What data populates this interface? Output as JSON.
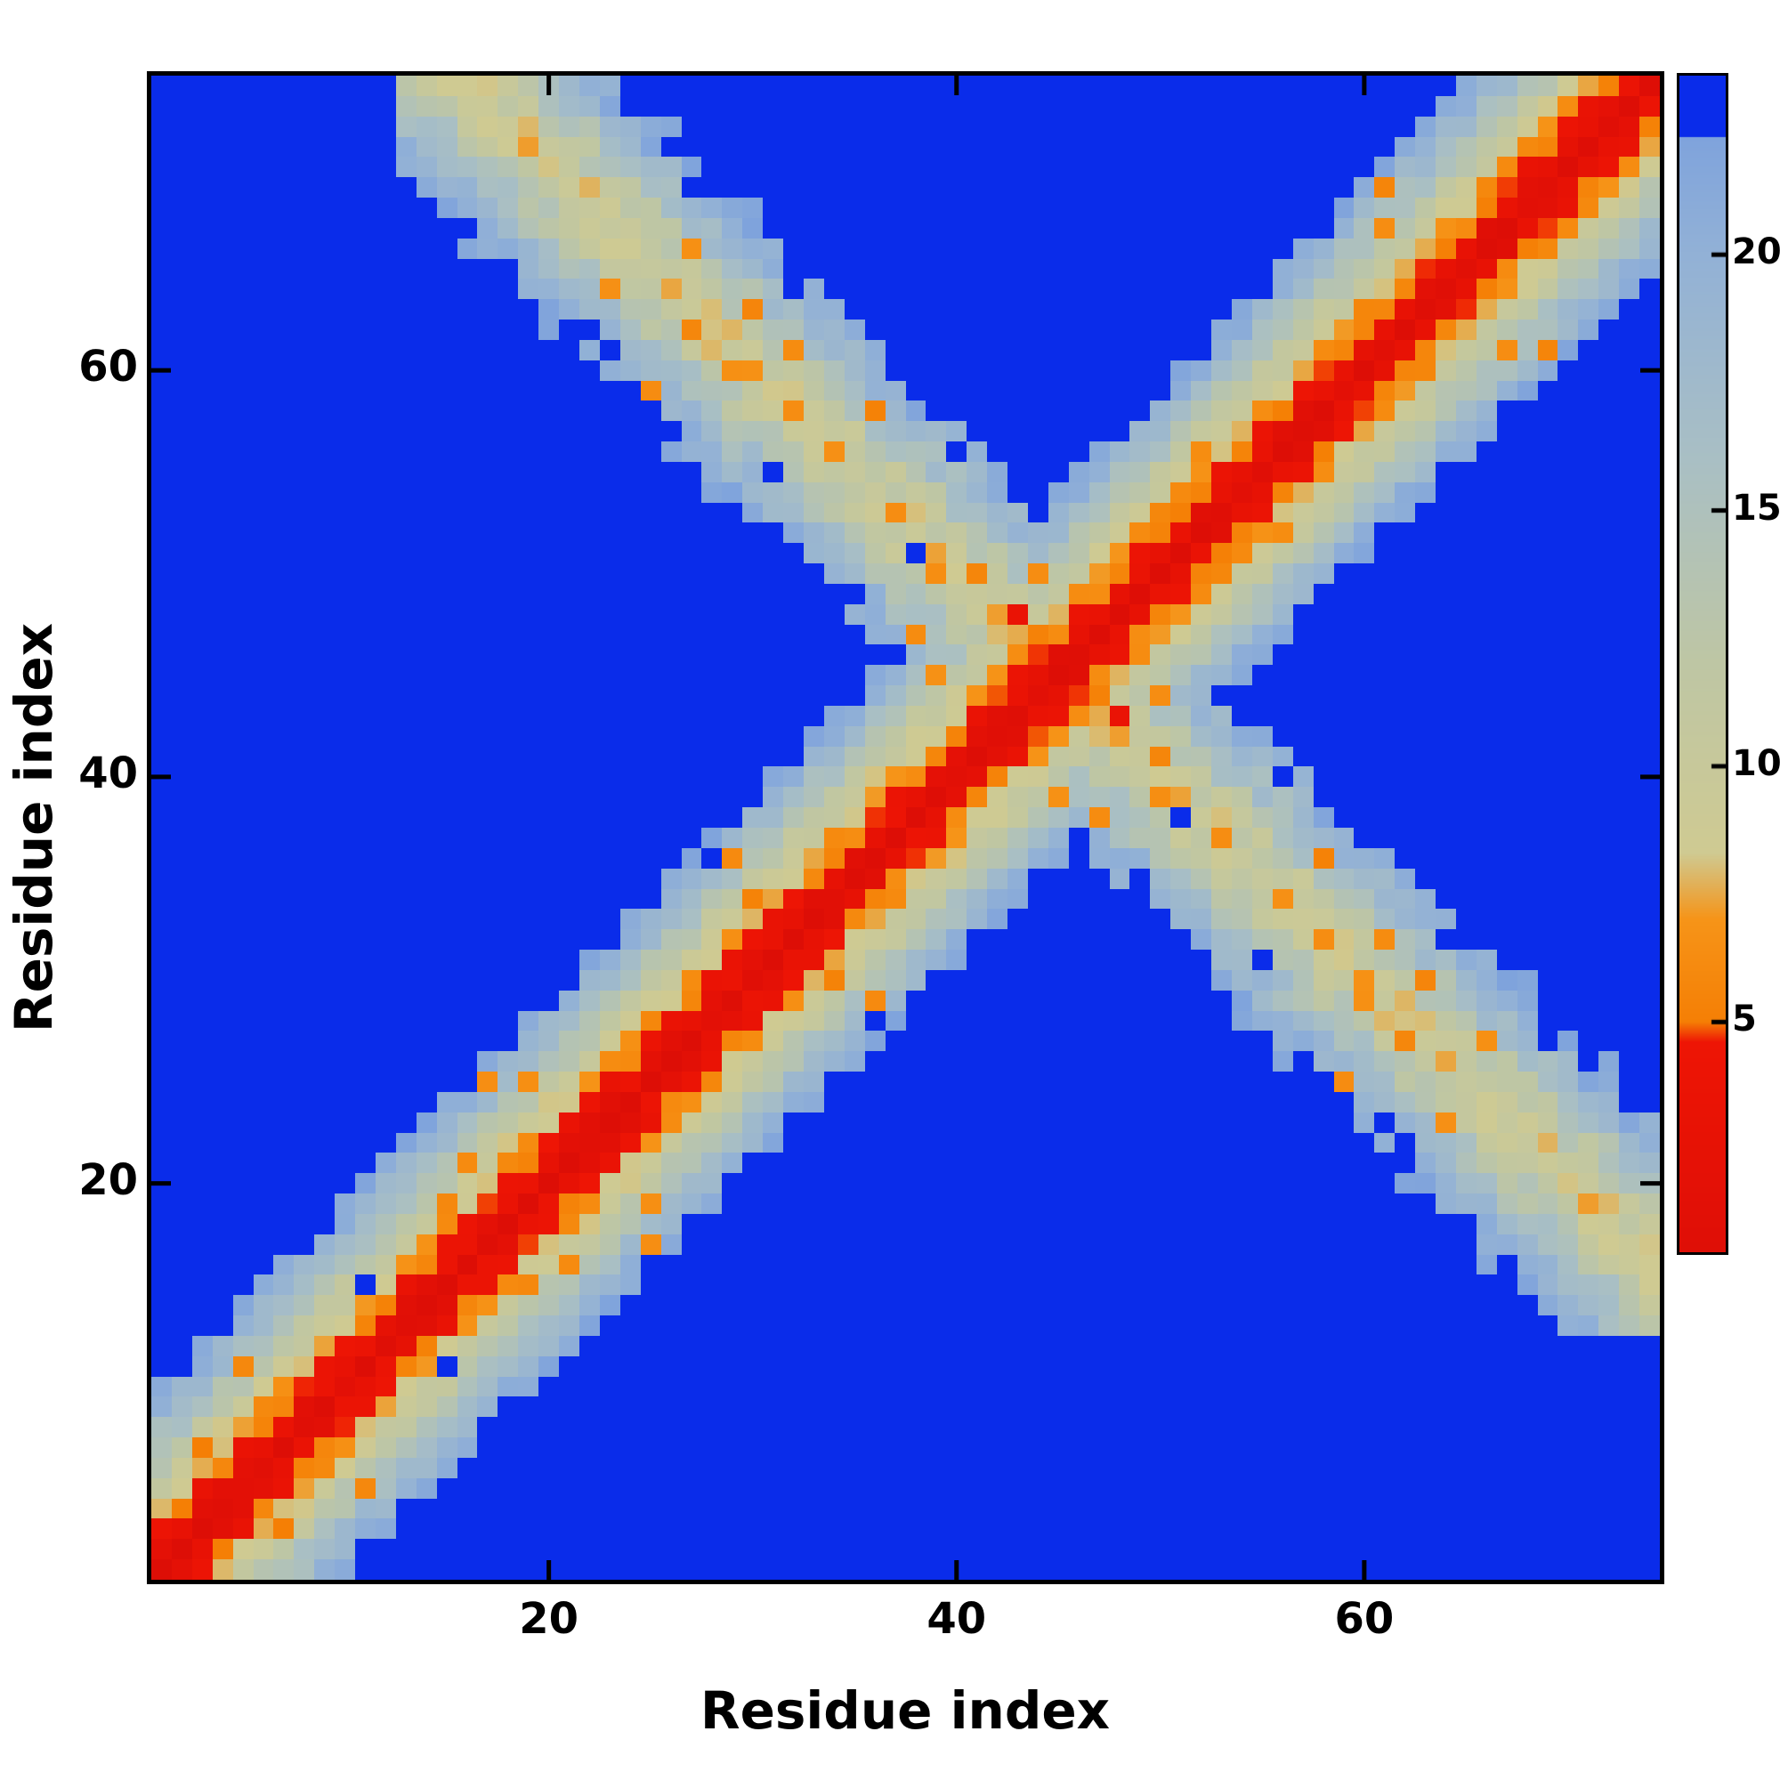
{
  "figure": {
    "background": "#ffffff",
    "axis_color": "#000000"
  },
  "chart_data": {
    "type": "heatmap",
    "title": "",
    "xlabel": "Residue index",
    "ylabel": "Residue index",
    "x_ticks": [
      20,
      40,
      60
    ],
    "y_ticks": [
      20,
      40,
      60
    ],
    "n_residues": 74,
    "axis_min": 0.5,
    "axis_max": 74.5,
    "grid": false,
    "legend_position": "right-colorbar",
    "colorbar_ticks": [
      5,
      10,
      15,
      20
    ],
    "colorbar_min": 0.5,
    "colorbar_max": 23.5,
    "out_of_range_color": "#0a2cea",
    "colormap_stops": [
      {
        "v": 0.0,
        "c": "#dd0e06"
      },
      {
        "v": 4.6,
        "c": "#ee1505"
      },
      {
        "v": 5.0,
        "c": "#f57f05"
      },
      {
        "v": 7.0,
        "c": "#f69418"
      },
      {
        "v": 8.3,
        "c": "#cfca92"
      },
      {
        "v": 12.0,
        "c": "#bec6a4"
      },
      {
        "v": 16.0,
        "c": "#a9bfc4"
      },
      {
        "v": 20.0,
        "c": "#92b1d6"
      },
      {
        "v": 22.3,
        "c": "#7fa3dc"
      }
    ],
    "generation": {
      "diag_scale": 2.4,
      "hairpin_center": 90,
      "hairpin_base": 8.2,
      "hairpin_scale": 1.9,
      "hairpin_min_res": 13,
      "cross_center": 45,
      "cutoff": 22.3,
      "noise": 2.0,
      "orange_speck_p": 0.055,
      "blue_hole_p": 0.008,
      "seed": 7
    }
  }
}
